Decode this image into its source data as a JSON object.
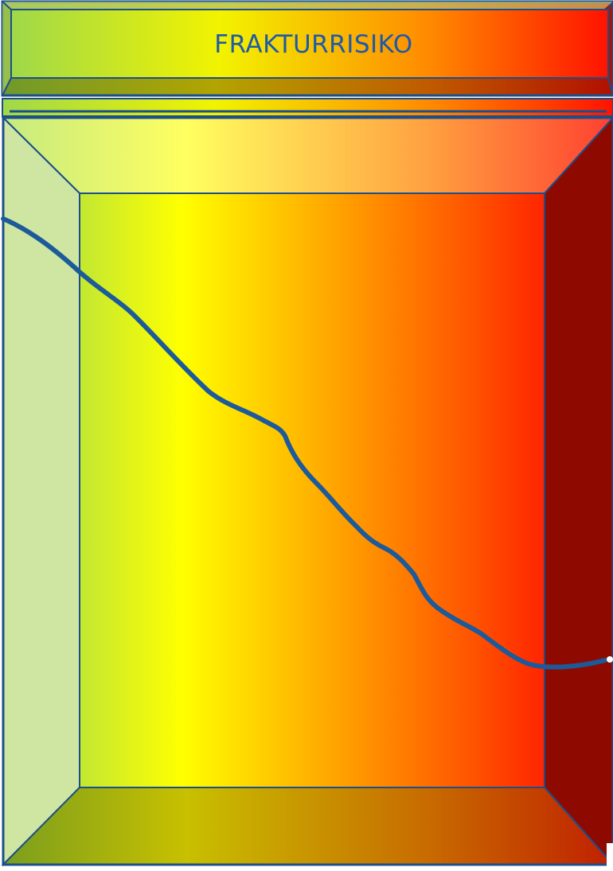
{
  "title": "FRAKTURRISIKO",
  "colors": {
    "curve": "#1c5a9a",
    "frame_stroke": "#1c4f8a",
    "gradient_start": "#a8e04a",
    "gradient_mid": "#ffff00",
    "gradient_end": "#ff2a00",
    "side_left": "#cfe6a2",
    "side_right": "#8b0000"
  }
}
